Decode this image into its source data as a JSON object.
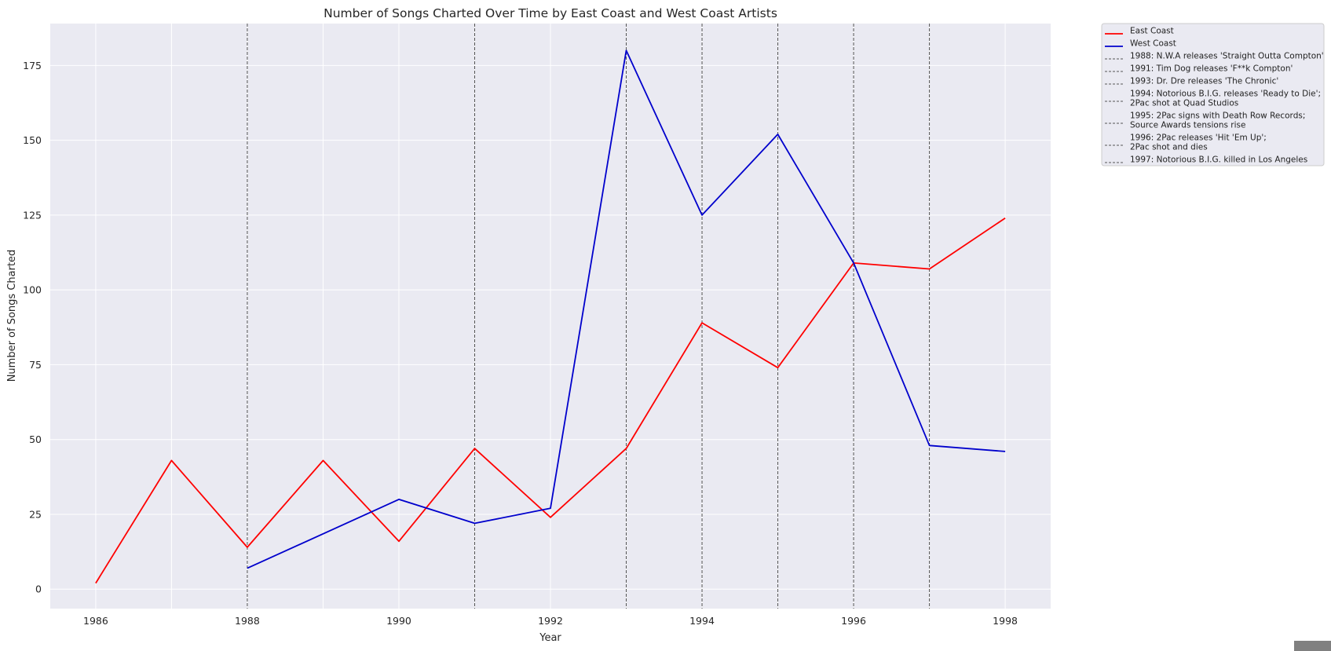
{
  "chart_data": {
    "type": "line",
    "title": "Number of Songs Charted Over Time by East Coast and West Coast Artists",
    "xlabel": "Year",
    "ylabel": "Number of Songs Charted",
    "xlim": [
      1985.4,
      1998.6
    ],
    "ylim": [
      -6.5,
      189
    ],
    "x_ticks": [
      1986,
      1988,
      1990,
      1992,
      1994,
      1996,
      1998
    ],
    "y_ticks": [
      0,
      25,
      50,
      75,
      100,
      125,
      150,
      175
    ],
    "grid": true,
    "legend_position": "outside upper right",
    "series": [
      {
        "name": "East Coast",
        "color": "#ff0000",
        "x": [
          1986,
          1987,
          1988,
          1989,
          1990,
          1991,
          1992,
          1993,
          1994,
          1995,
          1996,
          1997,
          1998
        ],
        "y": [
          2,
          43,
          14,
          43,
          16,
          47,
          24,
          47,
          89,
          74,
          109,
          107,
          124
        ]
      },
      {
        "name": "West Coast",
        "color": "#0000cc",
        "x": [
          1988,
          1990,
          1991,
          1992,
          1993,
          1994,
          1995,
          1996,
          1997,
          1998
        ],
        "y": [
          7,
          30,
          22,
          27,
          180,
          125,
          152,
          109,
          48,
          46
        ]
      }
    ],
    "event_lines": [
      {
        "year": 1988,
        "label": "1988: N.W.A releases 'Straight Outta Compton'"
      },
      {
        "year": 1991,
        "label": "1991: Tim Dog releases 'F**k Compton'"
      },
      {
        "year": 1993,
        "label": "1993: Dr. Dre releases 'The Chronic'"
      },
      {
        "year": 1994,
        "label": "1994: Notorious B.I.G. releases 'Ready to Die';\n2Pac shot at Quad Studios"
      },
      {
        "year": 1995,
        "label": "1995: 2Pac signs with Death Row Records;\nSource Awards tensions rise"
      },
      {
        "year": 1996,
        "label": "1996: 2Pac releases 'Hit 'Em Up';\n2Pac shot and dies"
      },
      {
        "year": 1997,
        "label": "1997: Notorious B.I.G. killed in Los Angeles"
      }
    ],
    "event_line_color": "#555555",
    "background_color": "#eaeaf2",
    "grid_color": "#ffffff"
  }
}
